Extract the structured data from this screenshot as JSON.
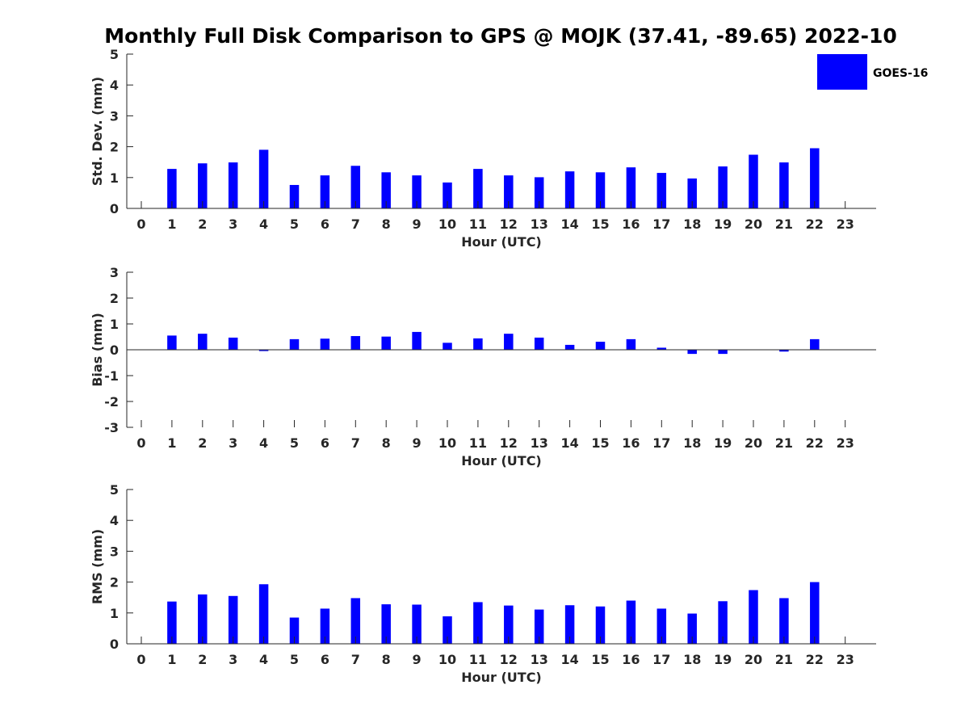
{
  "title": "Monthly Full Disk Comparison to GPS @ MOJK (37.41, -89.65) 2022-10",
  "colors": {
    "bar": "#0000ff",
    "axis": "#262626"
  },
  "legend": {
    "label": "GOES-16",
    "placement": "top-right"
  },
  "chart_data": [
    {
      "type": "bar",
      "categories": [
        "0",
        "1",
        "2",
        "3",
        "4",
        "5",
        "6",
        "7",
        "8",
        "9",
        "10",
        "11",
        "12",
        "13",
        "14",
        "15",
        "16",
        "17",
        "18",
        "19",
        "20",
        "21",
        "22",
        "23"
      ],
      "series": [
        {
          "name": "GOES-16",
          "values": [
            null,
            1.28,
            1.46,
            1.49,
            1.9,
            0.76,
            1.07,
            1.38,
            1.17,
            1.07,
            0.84,
            1.28,
            1.07,
            1.01,
            1.2,
            1.17,
            1.33,
            1.15,
            0.97,
            1.36,
            1.74,
            1.49,
            1.95,
            null
          ]
        }
      ],
      "xlabel": "Hour (UTC)",
      "ylabel": "Std. Dev. (mm)",
      "yticks": [
        "0",
        "1",
        "2",
        "3",
        "4",
        "5"
      ],
      "ylim": [
        0,
        5
      ],
      "grid": false
    },
    {
      "type": "bar",
      "categories": [
        "0",
        "1",
        "2",
        "3",
        "4",
        "5",
        "6",
        "7",
        "8",
        "9",
        "10",
        "11",
        "12",
        "13",
        "14",
        "15",
        "16",
        "17",
        "18",
        "19",
        "20",
        "21",
        "22",
        "23"
      ],
      "series": [
        {
          "name": "GOES-16",
          "values": [
            null,
            0.55,
            0.62,
            0.47,
            -0.05,
            0.41,
            0.43,
            0.53,
            0.51,
            0.69,
            0.27,
            0.44,
            0.62,
            0.47,
            0.19,
            0.31,
            0.41,
            0.08,
            -0.16,
            -0.16,
            null,
            -0.07,
            0.41,
            null
          ]
        }
      ],
      "xlabel": "Hour (UTC)",
      "ylabel": "Bias (mm)",
      "yticks": [
        "-3",
        "-2",
        "-1",
        "0",
        "1",
        "2",
        "3"
      ],
      "ylim": [
        -3,
        3
      ],
      "grid": false
    },
    {
      "type": "bar",
      "categories": [
        "0",
        "1",
        "2",
        "3",
        "4",
        "5",
        "6",
        "7",
        "8",
        "9",
        "10",
        "11",
        "12",
        "13",
        "14",
        "15",
        "16",
        "17",
        "18",
        "19",
        "20",
        "21",
        "22",
        "23"
      ],
      "series": [
        {
          "name": "GOES-16",
          "values": [
            null,
            1.37,
            1.6,
            1.55,
            1.93,
            0.85,
            1.14,
            1.48,
            1.28,
            1.27,
            0.89,
            1.35,
            1.24,
            1.11,
            1.25,
            1.21,
            1.4,
            1.14,
            0.98,
            1.38,
            1.74,
            1.48,
            2.0,
            null
          ]
        }
      ],
      "xlabel": "Hour (UTC)",
      "ylabel": "RMS (mm)",
      "yticks": [
        "0",
        "1",
        "2",
        "3",
        "4",
        "5"
      ],
      "ylim": [
        0,
        5
      ],
      "grid": false
    }
  ]
}
